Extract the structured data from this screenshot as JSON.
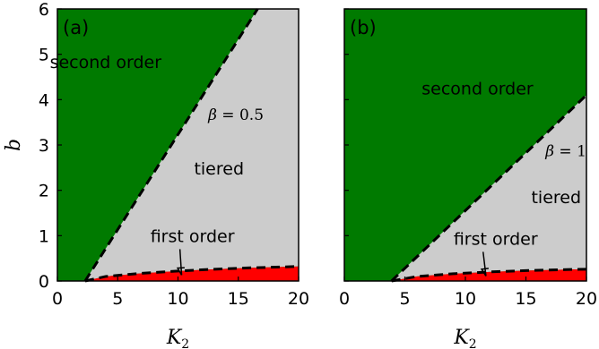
{
  "chart_data": [
    {
      "type": "area",
      "panel_label": "(a)",
      "xlabel": "K",
      "xlabel_sub": "2",
      "ylabel": "b",
      "xlim": [
        0,
        20
      ],
      "ylim": [
        0,
        6
      ],
      "xticks": [
        "0",
        "5",
        "10",
        "15",
        "20"
      ],
      "yticks": [
        "0",
        "1",
        "2",
        "3",
        "4",
        "5",
        "6"
      ],
      "beta_symbol": "β",
      "beta_value": "0.5",
      "beta_label": "β = 0.5",
      "regions": [
        {
          "name": "second order",
          "color": "#007a00",
          "label_at": [
            4.0,
            4.7
          ]
        },
        {
          "name": "tiered",
          "color": "#cccccc",
          "label_at": [
            13.4,
            2.35
          ]
        },
        {
          "name": "first order",
          "color": "#ff0000",
          "label_at": [
            11.2,
            0.86
          ],
          "arrow_to": [
            10.3,
            0.13
          ]
        }
      ],
      "boundaries": [
        {
          "name": "second-tiered",
          "style": "dashed",
          "points": [
            [
              2.3,
              0.0
            ],
            [
              16.6,
              6.0
            ]
          ]
        },
        {
          "name": "first-tiered",
          "style": "dashed",
          "points": [
            [
              2.3,
              0.0
            ],
            [
              4.0,
              0.1
            ],
            [
              7.0,
              0.17
            ],
            [
              10.0,
              0.22
            ],
            [
              13.0,
              0.26
            ],
            [
              16.0,
              0.29
            ],
            [
              20.0,
              0.32
            ]
          ]
        }
      ]
    },
    {
      "type": "area",
      "panel_label": "(b)",
      "xlabel": "K",
      "xlabel_sub": "2",
      "ylabel": "",
      "xlim": [
        0,
        20
      ],
      "ylim": [
        0,
        6
      ],
      "xticks": [
        "0",
        "5",
        "10",
        "15",
        "20"
      ],
      "yticks": [],
      "beta_symbol": "β",
      "beta_value": "1",
      "beta_label": "β = 1",
      "regions": [
        {
          "name": "second order",
          "color": "#007a00",
          "label_at": [
            11.0,
            4.12
          ]
        },
        {
          "name": "tiered",
          "color": "#cccccc",
          "label_at": [
            17.5,
            1.72
          ]
        },
        {
          "name": "first order",
          "color": "#ff0000",
          "label_at": [
            12.5,
            0.8
          ],
          "arrow_to": [
            11.7,
            0.11
          ]
        }
      ],
      "boundaries": [
        {
          "name": "second-tiered",
          "style": "dashed",
          "points": [
            [
              3.9,
              0.0
            ],
            [
              20.0,
              4.1
            ]
          ]
        },
        {
          "name": "first-tiered",
          "style": "dashed",
          "points": [
            [
              3.9,
              0.0
            ],
            [
              6.0,
              0.1
            ],
            [
              9.0,
              0.16
            ],
            [
              12.0,
              0.2
            ],
            [
              15.0,
              0.23
            ],
            [
              18.0,
              0.25
            ],
            [
              20.0,
              0.26
            ]
          ]
        }
      ]
    }
  ]
}
